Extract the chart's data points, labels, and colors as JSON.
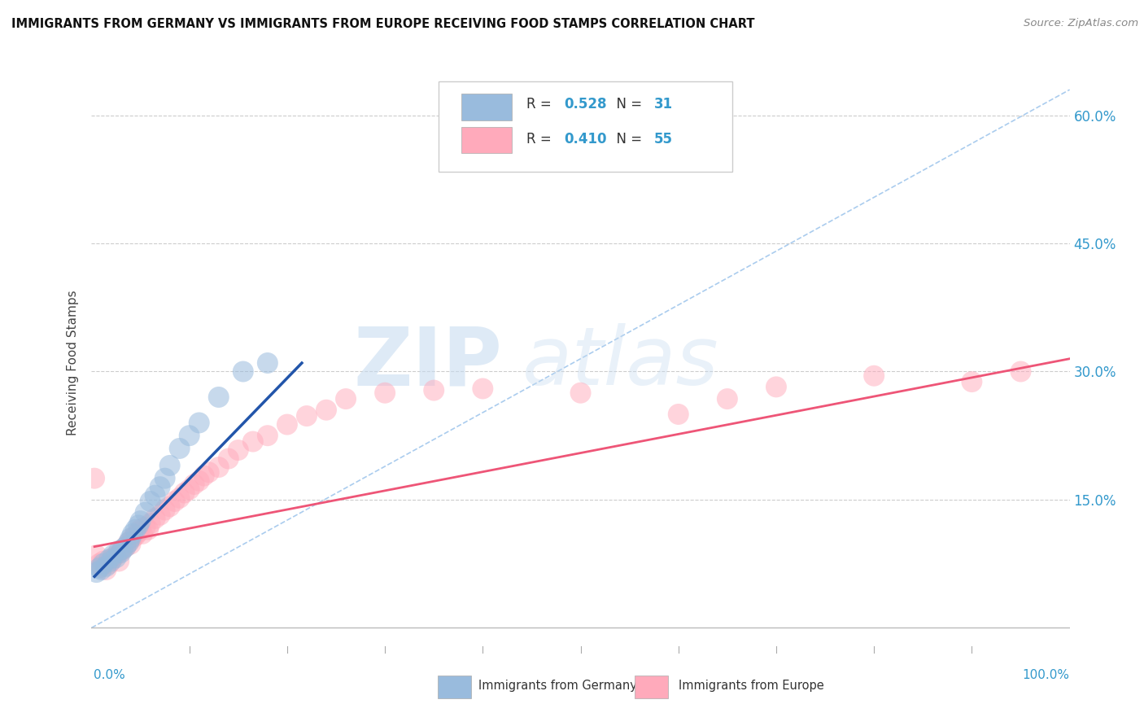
{
  "title": "IMMIGRANTS FROM GERMANY VS IMMIGRANTS FROM EUROPE RECEIVING FOOD STAMPS CORRELATION CHART",
  "source": "Source: ZipAtlas.com",
  "ylabel": "Receiving Food Stamps",
  "ytick_vals": [
    0.0,
    0.15,
    0.3,
    0.45,
    0.6
  ],
  "ytick_labels": [
    "",
    "15.0%",
    "30.0%",
    "45.0%",
    "60.0%"
  ],
  "xmin": 0.0,
  "xmax": 1.0,
  "ymin": -0.03,
  "ymax": 0.65,
  "legend_r1": "R = 0.528",
  "legend_n1": "N = 31",
  "legend_r2": "R = 0.410",
  "legend_n2": "N = 55",
  "color_blue": "#99BBDD",
  "color_pink": "#FFAABB",
  "color_blue_line": "#2255AA",
  "color_pink_line": "#EE5577",
  "color_dashed": "#AACCEE",
  "watermark_zip": "ZIP",
  "watermark_atlas": "atlas",
  "blue_scatter_x": [
    0.005,
    0.008,
    0.01,
    0.012,
    0.015,
    0.018,
    0.02,
    0.022,
    0.025,
    0.028,
    0.03,
    0.032,
    0.035,
    0.038,
    0.04,
    0.042,
    0.045,
    0.048,
    0.05,
    0.055,
    0.06,
    0.065,
    0.07,
    0.075,
    0.08,
    0.09,
    0.1,
    0.11,
    0.13,
    0.155,
    0.18
  ],
  "blue_scatter_y": [
    0.065,
    0.07,
    0.068,
    0.075,
    0.072,
    0.08,
    0.078,
    0.085,
    0.082,
    0.09,
    0.088,
    0.092,
    0.095,
    0.1,
    0.105,
    0.11,
    0.115,
    0.12,
    0.125,
    0.135,
    0.148,
    0.155,
    0.165,
    0.175,
    0.19,
    0.21,
    0.225,
    0.24,
    0.27,
    0.3,
    0.31
  ],
  "pink_scatter_x": [
    0.003,
    0.005,
    0.008,
    0.01,
    0.012,
    0.015,
    0.018,
    0.02,
    0.022,
    0.025,
    0.028,
    0.03,
    0.032,
    0.035,
    0.038,
    0.04,
    0.042,
    0.045,
    0.048,
    0.05,
    0.052,
    0.055,
    0.058,
    0.06,
    0.065,
    0.07,
    0.075,
    0.08,
    0.085,
    0.09,
    0.095,
    0.1,
    0.105,
    0.11,
    0.115,
    0.12,
    0.13,
    0.14,
    0.15,
    0.165,
    0.18,
    0.2,
    0.22,
    0.24,
    0.26,
    0.3,
    0.35,
    0.4,
    0.5,
    0.6,
    0.65,
    0.7,
    0.8,
    0.9,
    0.95
  ],
  "pink_scatter_y": [
    0.175,
    0.085,
    0.075,
    0.072,
    0.078,
    0.068,
    0.075,
    0.08,
    0.082,
    0.085,
    0.078,
    0.09,
    0.092,
    0.095,
    0.1,
    0.098,
    0.105,
    0.108,
    0.112,
    0.115,
    0.11,
    0.118,
    0.115,
    0.122,
    0.128,
    0.132,
    0.138,
    0.142,
    0.148,
    0.152,
    0.158,
    0.162,
    0.168,
    0.172,
    0.178,
    0.182,
    0.188,
    0.198,
    0.208,
    0.218,
    0.225,
    0.238,
    0.248,
    0.255,
    0.268,
    0.275,
    0.278,
    0.28,
    0.275,
    0.25,
    0.268,
    0.282,
    0.295,
    0.288,
    0.3
  ],
  "blue_line_x": [
    0.003,
    0.215
  ],
  "blue_line_y": [
    0.06,
    0.31
  ],
  "pink_line_x": [
    0.003,
    1.0
  ],
  "pink_line_y": [
    0.095,
    0.315
  ],
  "dashed_line_x": [
    0.0,
    1.0
  ],
  "dashed_line_y": [
    0.0,
    0.63
  ]
}
